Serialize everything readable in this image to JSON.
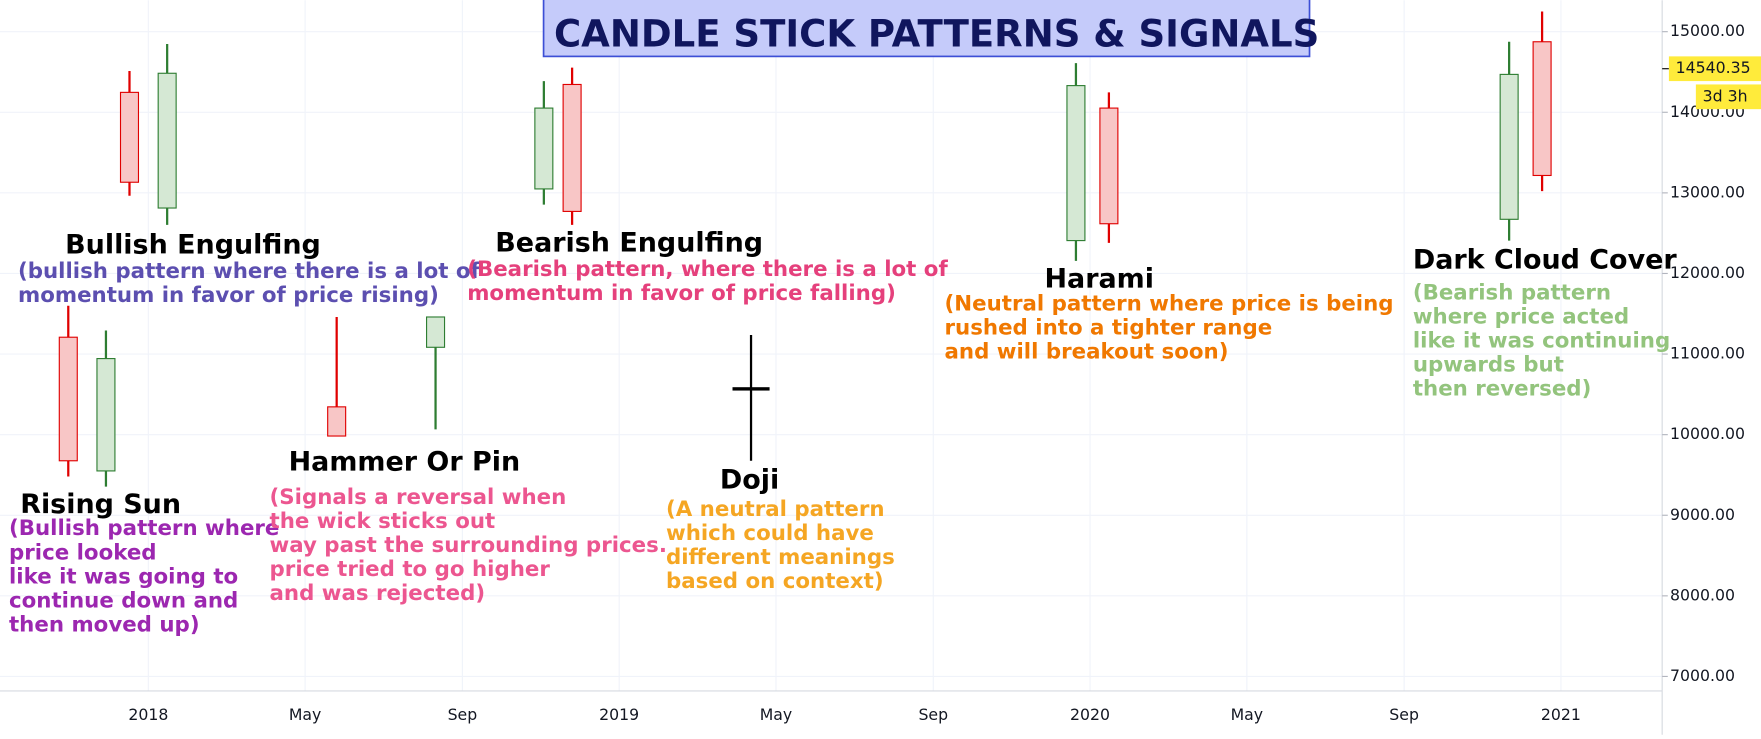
{
  "chart_data": {
    "type": "candlestick",
    "title": "CANDLE STICK PATTERNS & SIGNALS",
    "x": [
      2017.83,
      2017.91,
      2017.96,
      2018.04,
      2018.4,
      2018.61,
      2018.84,
      2018.9,
      2019.28,
      2019.97,
      2020.04,
      2020.89,
      2020.96
    ],
    "open": [
      11209,
      9550,
      14247,
      12812,
      10345,
      11084,
      13049,
      14345,
      10568,
      12408,
      14052,
      12672,
      14875
    ],
    "high": [
      11599,
      11293,
      14512,
      14847,
      11460,
      11460,
      14387,
      14554,
      11237,
      14610,
      14247,
      14875,
      15251
    ],
    "low": [
      9481,
      9355,
      12965,
      12603,
      9983,
      10066,
      12854,
      12603,
      9676,
      12157,
      12380,
      12408,
      13021
    ],
    "close": [
      9676,
      10944,
      13132,
      14484,
      9983,
      11460,
      14052,
      12770,
      10568,
      14331,
      12617,
      14470,
      13216
    ],
    "up_color": "#2e7d32",
    "up_fill": "#d5e8d4",
    "down_color": "#e00000",
    "down_fill": "#f8c6c6",
    "neutral_color": "#000000",
    "xlim": [
      2017.685,
      2021.215
    ],
    "ylim": [
      6820,
      15390
    ],
    "xticks": [
      2018,
      {
        "value": 2018.333,
        "label": "May"
      },
      {
        "value": 2018.667,
        "label": "Sep"
      },
      2019,
      {
        "value": 2019.333,
        "label": "May"
      },
      {
        "value": 2019.667,
        "label": "Sep"
      },
      2020,
      {
        "value": 2020.333,
        "label": "May"
      },
      {
        "value": 2020.667,
        "label": "Sep"
      },
      2021
    ],
    "yticks": [
      {
        "value": 7000,
        "label": "7000.00"
      },
      {
        "value": 8000,
        "label": "8000.00"
      },
      {
        "value": 9000,
        "label": "9000.00"
      },
      {
        "value": 10000,
        "label": "10000.00"
      },
      {
        "value": 11000,
        "label": "11000.00"
      },
      {
        "value": 12000,
        "label": "12000.00"
      },
      {
        "value": 13000,
        "label": "13000.00"
      },
      {
        "value": 14000,
        "label": "14000.00"
      },
      {
        "value": 15000,
        "label": "15000.00"
      }
    ],
    "grid": true,
    "last_price": 14540.35,
    "countdown": "3d 3h",
    "annotations": [
      {
        "title": "Bullish Engulfing",
        "color": "#5c4fb0",
        "lines": [
          "(bullish pattern where there is a lot of",
          "momentum in favor of price rising)"
        ]
      },
      {
        "title": "Bearish Engulfing",
        "color": "#e5407c",
        "lines": [
          "(Bearish pattern, where there is a lot of",
          "momentum in favor of price falling)"
        ]
      },
      {
        "title": "Harami",
        "color": "#f07800",
        "lines": [
          "(Neutral pattern where price is being",
          "rushed into a tighter range",
          "and will breakout soon)"
        ]
      },
      {
        "title": "Dark Cloud Cover",
        "color": "#93c47d",
        "lines": [
          "(Bearish pattern",
          "where price acted",
          "like it was continuing",
          "upwards but",
          "then reversed)"
        ]
      },
      {
        "title": "Rising Sun",
        "color": "#9c27b0",
        "lines": [
          "(Bullish pattern where",
          "price looked",
          "like it was going to",
          "continue down and",
          "then moved up)"
        ]
      },
      {
        "title": "Hammer Or Pin",
        "color": "#ec5690",
        "lines": [
          "(Signals a reversal when",
          "the wick sticks out",
          "way past the surrounding prices.",
          "price tried to go higher",
          "and was rejected)"
        ]
      },
      {
        "title": "Doji",
        "color": "#f5a623",
        "lines": [
          "(A neutral pattern",
          "which could have",
          "different meanings",
          "based on context)"
        ]
      }
    ]
  }
}
